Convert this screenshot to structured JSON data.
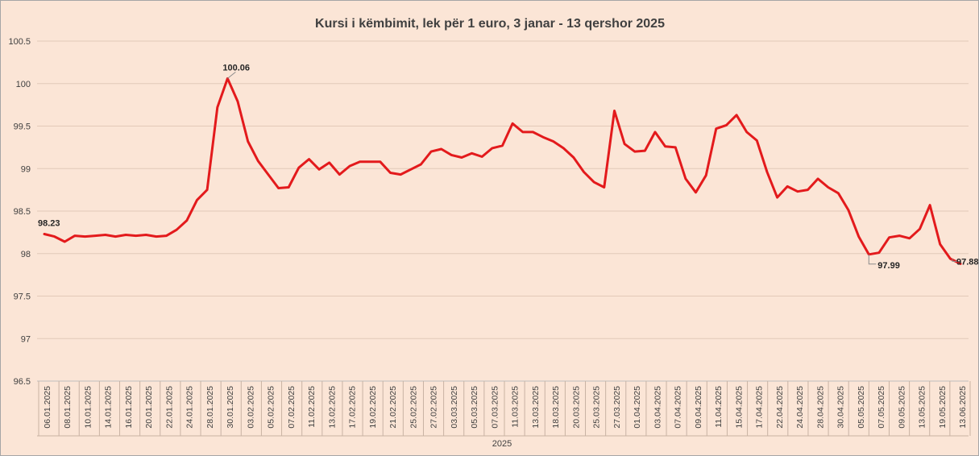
{
  "chart_data": {
    "type": "line",
    "title": "Kursi i këmbimit, lek për 1 euro, 3 janar - 13 qershor 2025",
    "xlabel": "2025",
    "ylabel": "",
    "ylim": [
      96.5,
      100.5
    ],
    "yticks": [
      "96.5",
      "97",
      "97.5",
      "98",
      "98.5",
      "99",
      "99.5",
      "100",
      "100.5"
    ],
    "grid": true,
    "legend": "none",
    "line_color": "#e31a1c",
    "x_tick_labels": [
      "06.01.2025",
      "08.01.2025",
      "10.01.2025",
      "14.01.2025",
      "16.01.2025",
      "20.01.2025",
      "22.01.2025",
      "24.01.2025",
      "28.01.2025",
      "30.01.2025",
      "03.02.2025",
      "05.02.2025",
      "07.02.2025",
      "11.02.2025",
      "13.02.2025",
      "17.02.2025",
      "19.02.2025",
      "21.02.2025",
      "25.02.2025",
      "27.02.2025",
      "03.03.2025",
      "05.03.2025",
      "07.03.2025",
      "11.03.2025",
      "13.03.2025",
      "18.03.2025",
      "20.03.2025",
      "25.03.2025",
      "27.03.2025",
      "01.04.2025",
      "03.04.2025",
      "07.04.2025",
      "09.04.2025",
      "11.04.2025",
      "15.04.2025",
      "17.04.2025",
      "22.04.2025",
      "24.04.2025",
      "28.04.2025",
      "30.04.2025",
      "05.05.2025",
      "07.05.2025",
      "09.05.2025",
      "13.05.2025",
      "19.05.2025",
      "13.06.2025"
    ],
    "values": [
      98.23,
      98.2,
      98.14,
      98.21,
      98.2,
      98.21,
      98.22,
      98.2,
      98.22,
      98.21,
      98.22,
      98.2,
      98.21,
      98.28,
      98.39,
      98.63,
      98.75,
      99.72,
      100.06,
      99.79,
      99.32,
      99.09,
      98.93,
      98.77,
      98.78,
      99.01,
      99.11,
      98.99,
      99.07,
      98.93,
      99.03,
      99.08,
      99.08,
      99.08,
      98.95,
      98.93,
      98.99,
      99.05,
      99.2,
      99.23,
      99.16,
      99.13,
      99.18,
      99.14,
      99.24,
      99.27,
      99.53,
      99.43,
      99.43,
      99.37,
      99.32,
      99.24,
      99.13,
      98.96,
      98.84,
      98.78,
      99.68,
      99.29,
      99.2,
      99.21,
      99.43,
      99.26,
      99.25,
      98.88,
      98.72,
      98.92,
      99.47,
      99.51,
      99.63,
      99.43,
      99.33,
      98.96,
      98.66,
      98.79,
      98.73,
      98.75,
      98.88,
      98.78,
      98.71,
      98.51,
      98.2,
      97.99,
      98.01,
      98.19,
      98.21,
      98.18,
      98.29,
      98.57,
      98.11,
      97.94,
      97.88
    ],
    "annotations": [
      {
        "index": 0,
        "text": "98.23"
      },
      {
        "index": 18,
        "text": "100.06"
      },
      {
        "index": 81,
        "text": "97.99"
      },
      {
        "index": 90,
        "text": "97.88"
      }
    ]
  }
}
